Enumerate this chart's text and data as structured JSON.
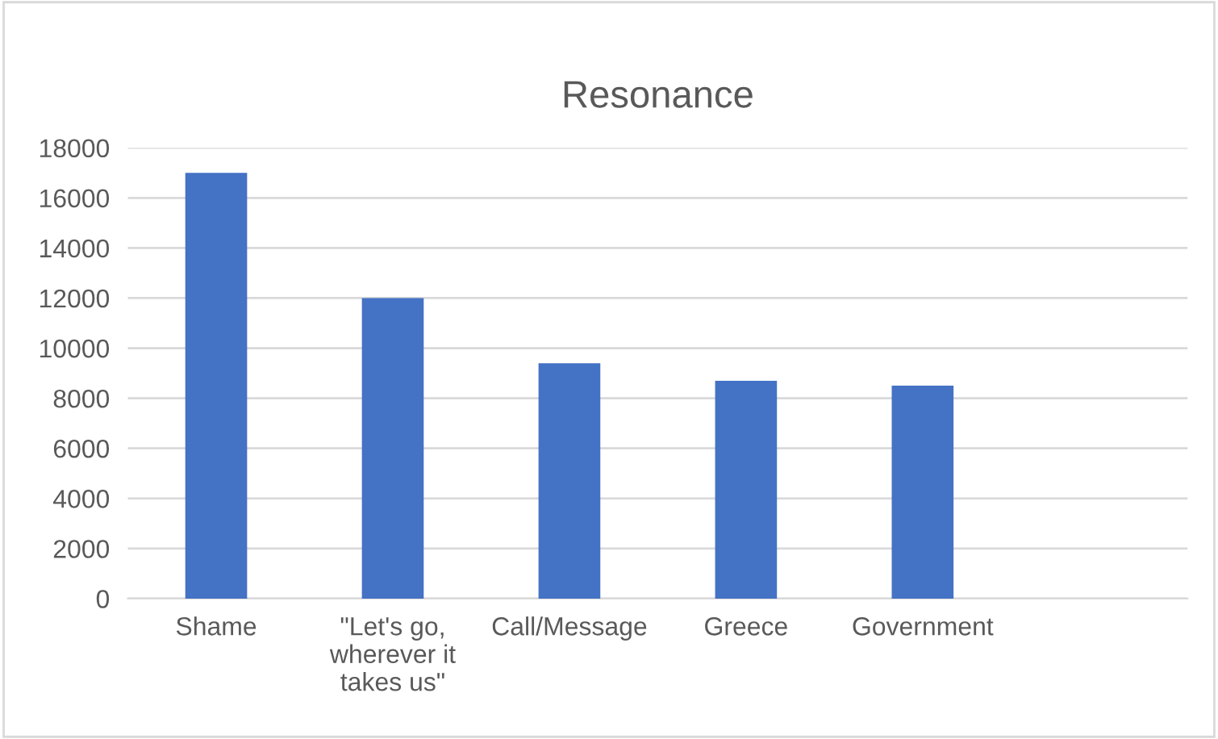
{
  "chart_data": {
    "type": "bar",
    "title": "Resonance",
    "categories": [
      "Shame",
      "\"Let's go, wherever it takes us\"",
      "Call/Message",
      "Greece",
      "Government",
      null
    ],
    "values": [
      17000,
      12000,
      9400,
      8700,
      8500,
      null
    ],
    "color": "#4472c4",
    "ylim": [
      0,
      18000
    ],
    "yticks": [
      0,
      2000,
      4000,
      6000,
      8000,
      10000,
      12000,
      14000,
      16000,
      18000
    ],
    "grid": "y",
    "legend": false
  }
}
